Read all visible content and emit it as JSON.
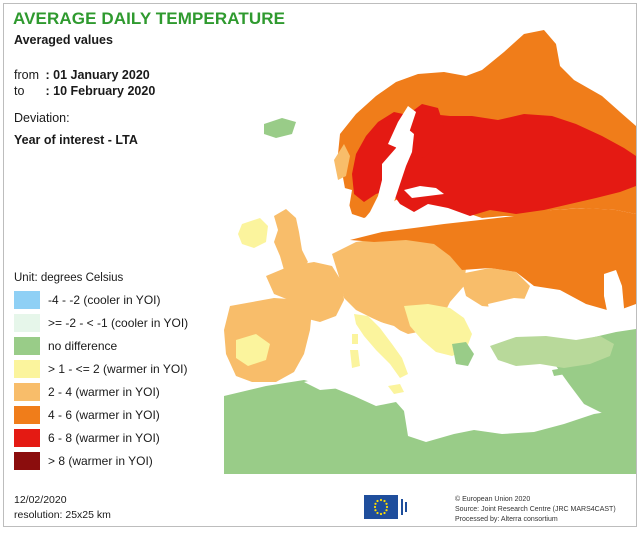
{
  "header": {
    "title": "AVERAGE DAILY TEMPERATURE",
    "subtitle": "Averaged values"
  },
  "period": {
    "from_label": "from",
    "from_value": ": 01 January 2020",
    "to_label": "to",
    "to_value": ": 10 February 2020"
  },
  "deviation": {
    "label": "Deviation:",
    "value": "Year of interest - LTA"
  },
  "legend": {
    "unit": "Unit: degrees Celsius",
    "items": [
      {
        "label": "-4 - -2 (cooler in YOI)",
        "color": "#8fd0f5"
      },
      {
        "label": ">= -2 - < -1 (cooler in YOI)",
        "color": "#e6f6ea"
      },
      {
        "label": "no difference",
        "color": "#99cc88"
      },
      {
        "label": "> 1 - <= 2 (warmer in YOI)",
        "color": "#fbf49d"
      },
      {
        "label": "2 - 4 (warmer in YOI)",
        "color": "#f8bd6a"
      },
      {
        "label": "4 - 6 (warmer in YOI)",
        "color": "#f07d1a"
      },
      {
        "label": "6 - 8 (warmer in YOI)",
        "color": "#e41a13"
      },
      {
        "label": "> 8 (warmer in YOI)",
        "color": "#8b0d0d"
      }
    ]
  },
  "footer": {
    "date": "12/02/2020",
    "resolution": "resolution: 25x25 km",
    "credit_lines": [
      "© European Union 2020",
      "Source: Joint Research Centre (JRC MARS4CAST)",
      "Processed by: Alterra consortium"
    ]
  },
  "colors": {
    "title": "#2f9a2f",
    "sea": "#ffffff",
    "outside_land": "#d9d9d9",
    "land_no_difference": "#99cc88",
    "warm_1_2": "#fbf49d",
    "warm_2_4": "#f8bd6a",
    "warm_4_6": "#f07d1a",
    "warm_6_8": "#e41a13",
    "eu_flag": "#1f4e9c"
  }
}
